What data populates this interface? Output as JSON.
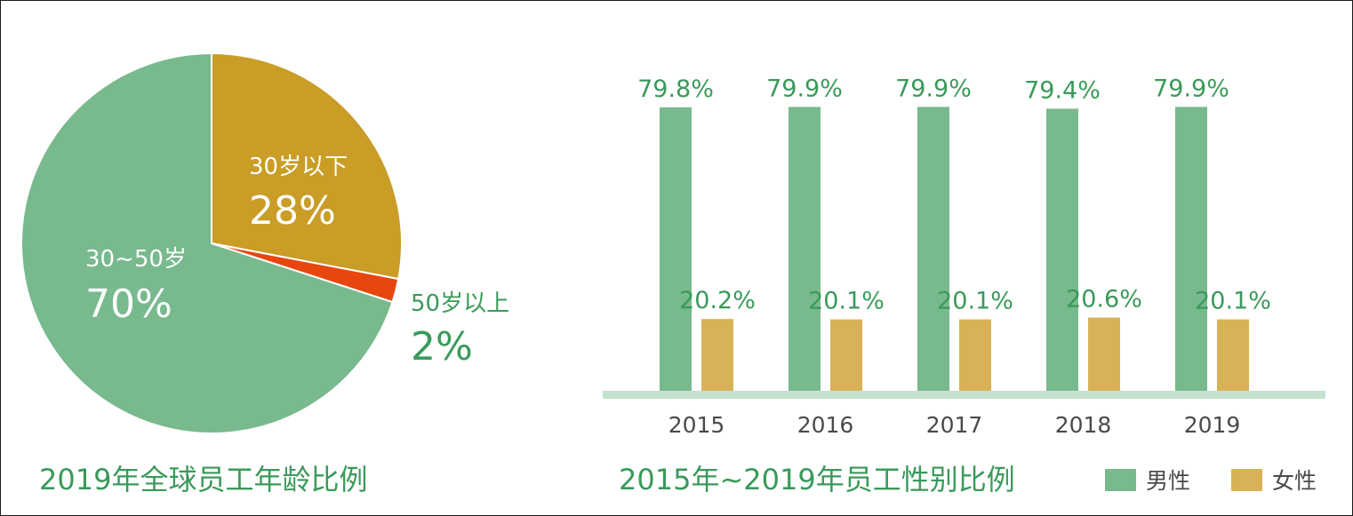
{
  "chart_data": [
    {
      "type": "pie",
      "title": "2019年全球员工年龄比例",
      "slices": [
        {
          "label": "30岁以下",
          "value": 28,
          "display": "28%",
          "color": "#c99d26"
        },
        {
          "label": "50岁以上",
          "value": 2,
          "display": "2%",
          "color": "#e8460f"
        },
        {
          "label": "30~50岁",
          "value": 70,
          "display": "70%",
          "color": "#78b98d"
        }
      ]
    },
    {
      "type": "bar",
      "title": "2015年~2019年员工性别比例",
      "categories": [
        "2015",
        "2016",
        "2017",
        "2018",
        "2019"
      ],
      "series": [
        {
          "name": "男性",
          "values": [
            79.8,
            79.9,
            79.9,
            79.4,
            79.9
          ],
          "labels": [
            "79.8%",
            "79.9%",
            "79.9%",
            "79.4%",
            "79.9%"
          ],
          "color": "#78b98d"
        },
        {
          "name": "女性",
          "values": [
            20.2,
            20.1,
            20.1,
            20.6,
            20.1
          ],
          "labels": [
            "20.2%",
            "20.1%",
            "20.1%",
            "20.6%",
            "20.1%"
          ],
          "color": "#d8b256"
        }
      ],
      "ylim": [
        0,
        100
      ],
      "legend": "bottom-right",
      "axis_color": "#c4e2cf"
    }
  ]
}
